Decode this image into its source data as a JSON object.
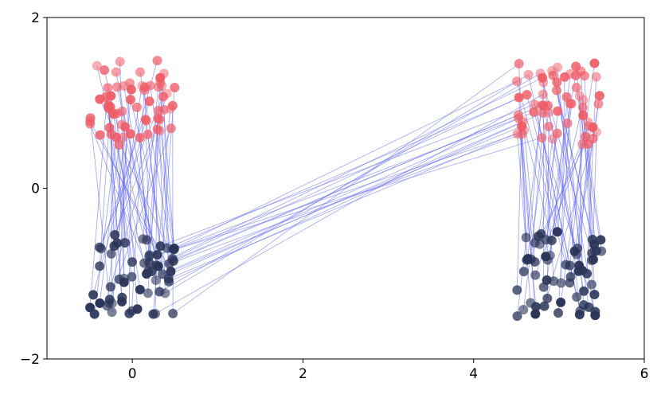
{
  "chart_data": {
    "type": "scatter",
    "title": "",
    "xlabel": "",
    "ylabel": "",
    "xlim": [
      -1,
      6
    ],
    "ylim": [
      -2,
      2
    ],
    "xticks": [
      0,
      2,
      4,
      6
    ],
    "yticks": [
      -2,
      0,
      2
    ],
    "xtick_labels": [
      "0",
      "2",
      "4",
      "6"
    ],
    "ytick_labels": [
      "−2",
      "0",
      "2"
    ],
    "grid": false,
    "legend": false,
    "colors": {
      "upper_points": "#f05a64",
      "lower_points": "#2a3558",
      "connectors": "#5b63f0"
    },
    "clusters": [
      {
        "center_x": 0.0,
        "x_halfwidth": 0.5,
        "upper_y_range": [
          0.5,
          1.5
        ],
        "lower_y_range": [
          -1.5,
          -0.5
        ],
        "points_per_group": 60
      },
      {
        "center_x": 5.0,
        "x_halfwidth": 0.5,
        "upper_y_range": [
          0.5,
          1.5
        ],
        "lower_y_range": [
          -1.5,
          -0.5
        ],
        "points_per_group": 60
      }
    ],
    "connections": [
      {
        "from": "lower_points",
        "to": "upper_points",
        "description_type": "within-cluster"
      },
      {
        "from": "cluster_1_lower_points",
        "to": "cluster_2_upper_points",
        "count": 20
      }
    ]
  }
}
